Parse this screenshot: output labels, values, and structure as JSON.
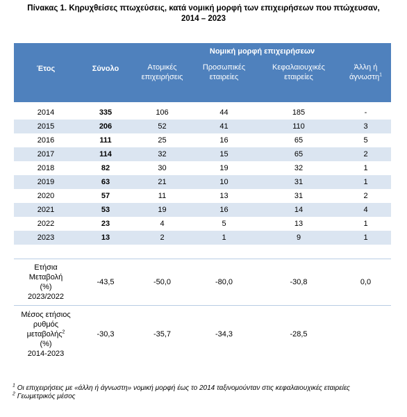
{
  "title": {
    "lines": [
      "Πίνακας 1. Κηρυχθείσες πτωχεύσεις, κατά νομική μορφή των επιχειρήσεων που πτώχευσαν,",
      "2014 – 2023"
    ]
  },
  "table": {
    "group_header": "Νομική μορφή επιχειρήσεων",
    "columns": [
      {
        "lines": [
          "Έτος"
        ]
      },
      {
        "lines": [
          "Σύνολο"
        ]
      },
      {
        "lines": [
          "Ατομικές",
          "επιχειρήσεις"
        ]
      },
      {
        "lines": [
          "Προσωπικές",
          "εταιρείες"
        ]
      },
      {
        "lines": [
          "Κεφαλαιουχικές",
          "εταιρείες"
        ]
      },
      {
        "lines": [
          "Άλλη ή",
          {
            "text": "άγνωστη",
            "note": "1"
          }
        ]
      }
    ],
    "rows": [
      [
        "2014",
        "335",
        "106",
        "44",
        "185",
        "-"
      ],
      [
        "2015",
        "206",
        "52",
        "41",
        "110",
        "3"
      ],
      [
        "2016",
        "111",
        "25",
        "16",
        "65",
        "5"
      ],
      [
        "2017",
        "114",
        "32",
        "15",
        "65",
        "2"
      ],
      [
        "2018",
        "82",
        "30",
        "19",
        "32",
        "1"
      ],
      [
        "2019",
        "63",
        "21",
        "10",
        "31",
        "1"
      ],
      [
        "2020",
        "57",
        "11",
        "13",
        "31",
        "2"
      ],
      [
        "2021",
        "53",
        "19",
        "16",
        "14",
        "4"
      ],
      [
        "2022",
        "23",
        "4",
        "5",
        "13",
        "1"
      ],
      [
        "2023",
        "13",
        "2",
        "1",
        "9",
        "1"
      ]
    ],
    "summary_rows": [
      {
        "label": [
          "Ετήσια",
          "Μεταβολή",
          "(%)",
          "2023/2022"
        ],
        "values": [
          "-43,5",
          "-50,0",
          "-80,0",
          "-30,8",
          "0,0"
        ]
      },
      {
        "label": [
          "Μέσος ετήσιος",
          "ρυθμός",
          {
            "text": "μεταβολής",
            "note": "2"
          },
          "(%)",
          "2014-2023"
        ],
        "values": [
          "-30,3",
          "-35,7",
          "-34,3",
          "-28,5"
        ]
      }
    ]
  },
  "footnotes": [
    {
      "mark": "1",
      "text": "Οι επιχειρήσεις με «άλλη ή άγνωστη» νομική μορφή έως το 2014 ταξινομούνταν στις κεφαλαιουχικές εταιρείες"
    },
    {
      "mark": "2",
      "text": "Γεωμετρικός μέσος"
    }
  ]
}
